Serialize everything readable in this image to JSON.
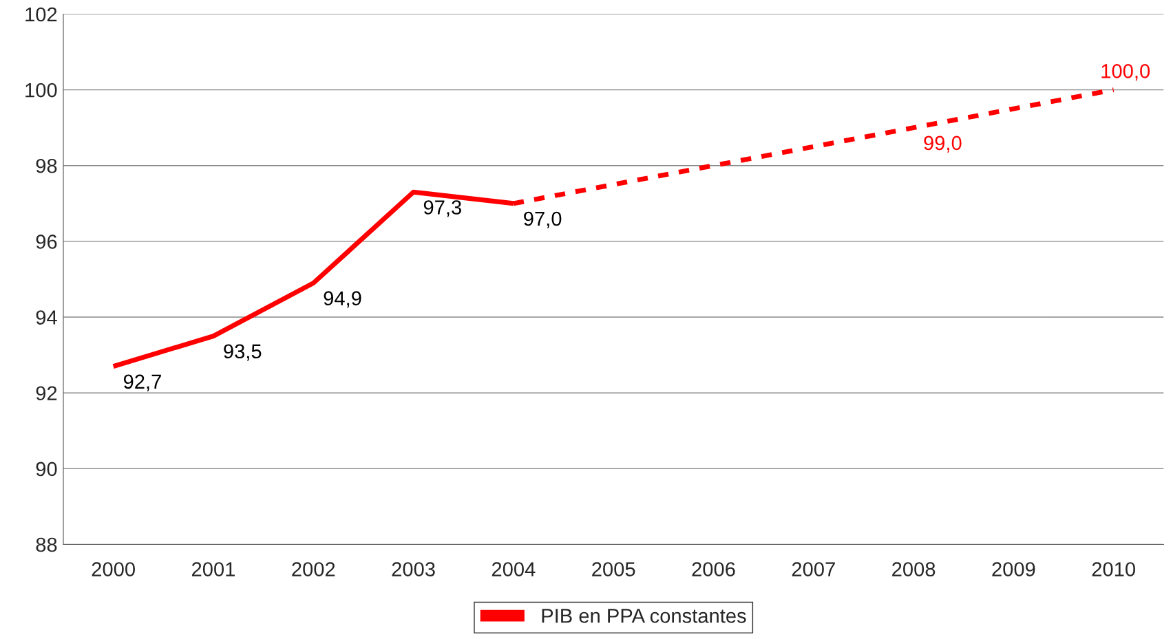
{
  "chart_data": {
    "type": "line",
    "categories": [
      "2000",
      "2001",
      "2002",
      "2003",
      "2004",
      "2005",
      "2006",
      "2007",
      "2008",
      "2009",
      "2010"
    ],
    "series": [
      {
        "name": "PIB en PPA constantes",
        "color": "#ff0000",
        "line_style": "solid",
        "values": [
          92.7,
          93.5,
          94.9,
          97.3,
          97.0,
          null,
          null,
          null,
          null,
          null,
          null
        ],
        "value_labels": [
          "92,7",
          "93,5",
          "94,9",
          "97,3",
          "97,0",
          null,
          null,
          null,
          null,
          null,
          null
        ]
      },
      {
        "color": "#ff0000",
        "line_style": "dashed",
        "values": [
          null,
          null,
          null,
          null,
          97.0,
          97.5,
          98.0,
          98.5,
          99.0,
          99.5,
          100.0
        ],
        "value_labels": [
          null,
          null,
          null,
          null,
          null,
          null,
          null,
          null,
          "99,0",
          null,
          "100,0"
        ]
      }
    ],
    "ylim": [
      88,
      102
    ],
    "yticks": [
      88,
      90,
      92,
      94,
      96,
      98,
      100,
      102
    ],
    "grid": "y",
    "legend": "bottom",
    "marker": "none"
  }
}
